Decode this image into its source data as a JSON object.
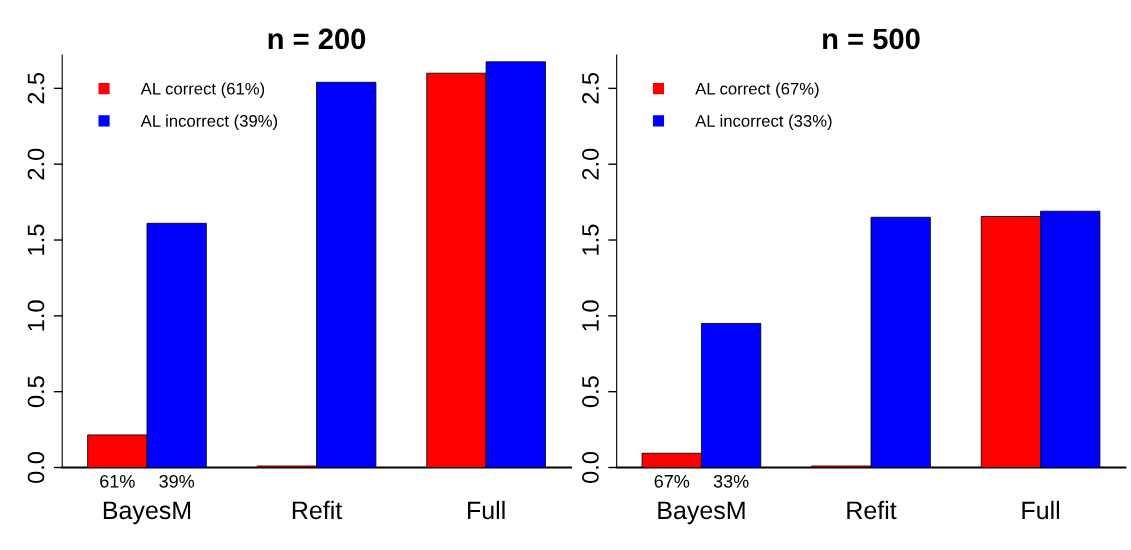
{
  "chart_data": [
    {
      "type": "bar",
      "title": "n = 200",
      "categories": [
        "BayesM",
        "Refit",
        "Full"
      ],
      "series": [
        {
          "name": "AL correct (61%)",
          "color": "#ff0000",
          "values": [
            0.215,
            0.01,
            2.6
          ]
        },
        {
          "name": "AL incorrect (39%)",
          "color": "#0000ff",
          "values": [
            1.61,
            2.54,
            2.675
          ]
        }
      ],
      "annotations": [
        "61%",
        "39%"
      ],
      "ylim": [
        0,
        2.72
      ],
      "yticks": [
        {
          "value": 0,
          "label": "0.0"
        },
        0.5,
        {
          "value": 1,
          "label": "1.0"
        },
        1.5,
        {
          "value": 2,
          "label": "2.0"
        },
        2.5
      ],
      "grid": false,
      "legend": "top left"
    },
    {
      "type": "bar",
      "title": "n = 500",
      "categories": [
        "BayesM",
        "Refit",
        "Full"
      ],
      "series": [
        {
          "name": "AL correct (67%)",
          "color": "#ff0000",
          "values": [
            0.094,
            0.01,
            1.655
          ]
        },
        {
          "name": "AL incorrect (33%)",
          "color": "#0000ff",
          "values": [
            0.95,
            1.65,
            1.69
          ]
        }
      ],
      "annotations": [
        "67%",
        "33%"
      ],
      "ylim": [
        0,
        2.72
      ],
      "yticks": [
        {
          "value": 0,
          "label": "0.0"
        },
        0.5,
        {
          "value": 1,
          "label": "1.0"
        },
        1.5,
        {
          "value": 2,
          "label": "2.0"
        },
        2.5
      ],
      "grid": false,
      "legend": "top left"
    }
  ]
}
